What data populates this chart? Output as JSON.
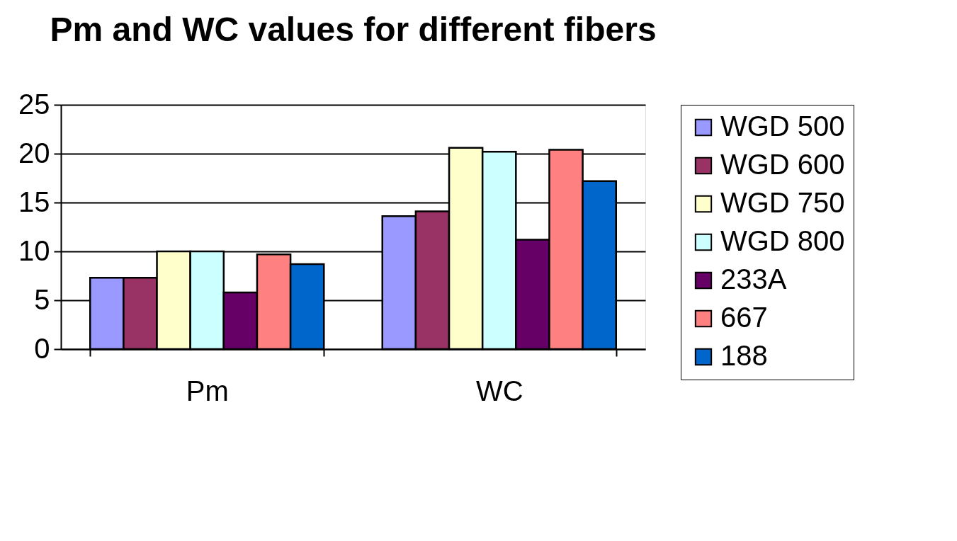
{
  "chart_data": {
    "type": "bar",
    "title": "Pm and WC values for different fibers",
    "categories": [
      "Pm",
      "WC"
    ],
    "series": [
      {
        "name": "WGD 500",
        "color": "#9999ff",
        "values": [
          7.3,
          13.6
        ]
      },
      {
        "name": "WGD 600",
        "color": "#993366",
        "values": [
          7.3,
          14.1
        ]
      },
      {
        "name": "WGD 750",
        "color": "#ffffcc",
        "values": [
          10.0,
          20.6
        ]
      },
      {
        "name": "WGD 800",
        "color": "#ccffff",
        "values": [
          10.0,
          20.2
        ]
      },
      {
        "name": "233A",
        "color": "#660066",
        "values": [
          5.8,
          11.2
        ]
      },
      {
        "name": "667",
        "color": "#ff8080",
        "values": [
          9.7,
          20.4
        ]
      },
      {
        "name": "188",
        "color": "#0066cc",
        "values": [
          8.7,
          17.2
        ]
      }
    ],
    "ylim": [
      0,
      25
    ],
    "yticks": [
      0,
      5,
      10,
      15,
      20,
      25
    ],
    "grid": "y",
    "legend": "right"
  }
}
